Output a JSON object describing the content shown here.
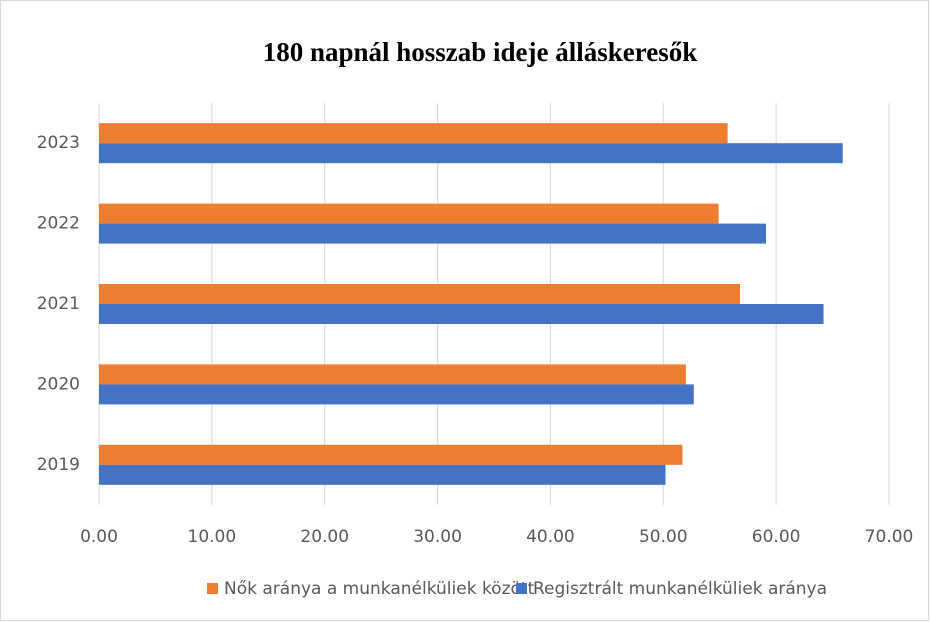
{
  "chart_data": {
    "type": "hbar",
    "title": "180 napnál hosszab ideje álláskeresők",
    "categories": [
      "2019",
      "2020",
      "2021",
      "2022",
      "2023"
    ],
    "series": [
      {
        "name": "Nők aránya a munkanélküliek között",
        "color": "#ed7d31",
        "values": [
          51.7,
          52.0,
          56.8,
          54.9,
          55.7
        ]
      },
      {
        "name": "Regisztrált munkanélküliek aránya",
        "color": "#4472c4",
        "values": [
          50.2,
          52.7,
          64.2,
          59.1,
          65.9
        ]
      }
    ],
    "xlim": [
      0,
      70
    ],
    "xticks": [
      {
        "value": 0,
        "label": "0.00"
      },
      {
        "value": 10,
        "label": "10.00"
      },
      {
        "value": 20,
        "label": "20.00"
      },
      {
        "value": 30,
        "label": "30.00"
      },
      {
        "value": 40,
        "label": "40.00"
      },
      {
        "value": 50,
        "label": "50.00"
      },
      {
        "value": 60,
        "label": "60.00"
      },
      {
        "value": 70,
        "label": "70.00"
      }
    ],
    "grid": true,
    "legend": "bottom"
  }
}
